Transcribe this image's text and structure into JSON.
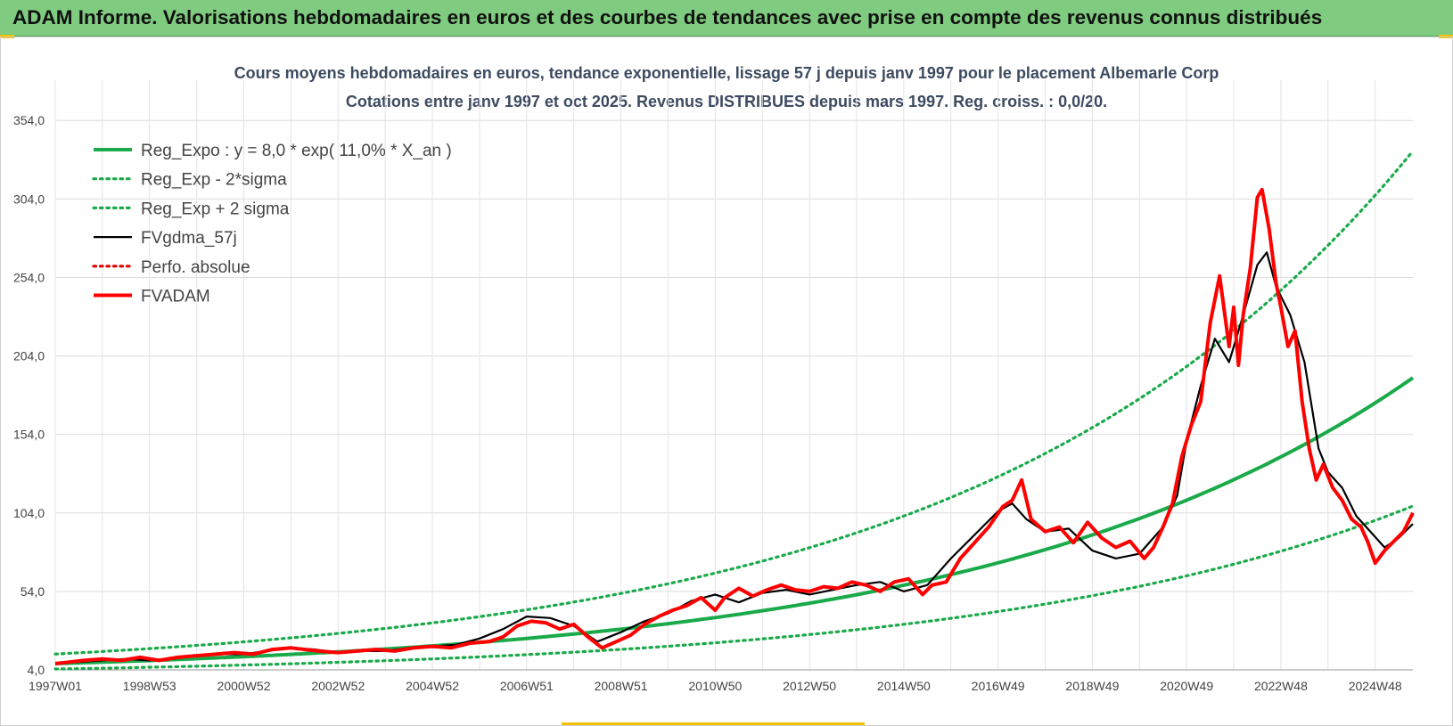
{
  "page": {
    "banner_title": "ADAM Informe. Valorisations hebdomadaires en euros et des courbes de tendances avec prise en compte des revenus connus distribués"
  },
  "chart_data": {
    "type": "line",
    "title": "Cours moyens hebdomadaires en euros, tendance exponentielle, lissage 57 j depuis janv 1997 pour le placement Albemarle Corp",
    "subtitle": "Cotations entre janv 1997 et oct 2025. Revenus DISTRIBUES depuis mars 1997. Reg. croiss. : 0,0/20.",
    "xlabel": "",
    "ylabel": "",
    "x_ticks": [
      "1997W01",
      "1998W53",
      "2000W52",
      "2002W52",
      "2004W52",
      "2006W51",
      "2008W51",
      "2010W50",
      "2012W50",
      "2014W50",
      "2016W49",
      "2018W49",
      "2020W49",
      "2022W48",
      "2024W48"
    ],
    "x_range": [
      1997.0,
      2025.8
    ],
    "y_ticks": [
      "4,0",
      "54,0",
      "104,0",
      "154,0",
      "204,0",
      "254,0",
      "304,0",
      "354,0"
    ],
    "ylim": [
      4,
      374
    ],
    "grid": true,
    "legend_position": "top-left",
    "regression": {
      "coefficient": 8.0,
      "rate_per_year": 0.11
    },
    "series": [
      {
        "name": "Reg_Expo : y = 8,0 * exp( 11,0% *  X_an )",
        "color": "#1aaa4a",
        "style": "solid-thick",
        "kind": "exp",
        "factor": 1.0
      },
      {
        "name": "Reg_Exp - 2*sigma",
        "color": "#1aaa4a",
        "style": "dotted",
        "kind": "exp",
        "factor": 0.57
      },
      {
        "name": "Reg_Exp + 2 sigma",
        "color": "#1aaa4a",
        "style": "dotted",
        "kind": "exp",
        "factor": 1.76
      },
      {
        "name": "FVgdma_57j",
        "color": "#000000",
        "style": "solid",
        "x": [
          1997.0,
          1997.5,
          1998.0,
          1998.5,
          1999.0,
          1999.5,
          2000.0,
          2000.5,
          2001.0,
          2001.5,
          2002.0,
          2002.5,
          2003.0,
          2003.5,
          2004.0,
          2004.5,
          2005.0,
          2005.5,
          2006.0,
          2006.5,
          2007.0,
          2007.5,
          2008.0,
          2008.5,
          2009.0,
          2009.5,
          2010.0,
          2010.5,
          2011.0,
          2011.5,
          2012.0,
          2012.5,
          2013.0,
          2013.5,
          2014.0,
          2014.5,
          2015.0,
          2015.5,
          2016.0,
          2016.5,
          2017.0,
          2017.3,
          2017.6,
          2018.0,
          2018.5,
          2019.0,
          2019.5,
          2020.0,
          2020.5,
          2020.8,
          2021.0,
          2021.3,
          2021.6,
          2021.9,
          2022.2,
          2022.5,
          2022.7,
          2022.9,
          2023.2,
          2023.5,
          2023.8,
          2024.0,
          2024.3,
          2024.6,
          2024.9,
          2025.2,
          2025.5,
          2025.8
        ],
        "values": [
          8,
          9,
          10,
          11,
          10,
          11,
          13,
          14,
          14,
          16,
          18,
          17,
          15,
          16,
          16,
          18,
          19,
          20,
          24,
          30,
          38,
          37,
          32,
          22,
          28,
          35,
          40,
          48,
          52,
          47,
          53,
          55,
          52,
          55,
          58,
          60,
          54,
          58,
          75,
          90,
          105,
          110,
          100,
          92,
          94,
          80,
          75,
          78,
          95,
          115,
          150,
          185,
          215,
          200,
          230,
          262,
          270,
          248,
          230,
          200,
          145,
          130,
          120,
          102,
          92,
          82,
          88,
          97
        ]
      },
      {
        "name": "Perfo. absolue",
        "color": "#e00000",
        "style": "dotted"
      },
      {
        "name": "FVADAM",
        "color": "#ff0000",
        "style": "solid-thick",
        "x": [
          1997.0,
          1997.3,
          1997.6,
          1998.0,
          1998.4,
          1998.8,
          1999.2,
          1999.6,
          2000.0,
          2000.4,
          2000.8,
          2001.2,
          2001.6,
          2002.0,
          2002.3,
          2002.6,
          2003.0,
          2003.4,
          2003.8,
          2004.2,
          2004.6,
          2005.0,
          2005.4,
          2005.8,
          2006.2,
          2006.5,
          2006.8,
          2007.1,
          2007.4,
          2007.7,
          2008.0,
          2008.3,
          2008.6,
          2008.9,
          2009.2,
          2009.5,
          2009.8,
          2010.1,
          2010.4,
          2010.7,
          2011.0,
          2011.2,
          2011.5,
          2011.8,
          2012.1,
          2012.4,
          2012.7,
          2013.0,
          2013.3,
          2013.6,
          2013.9,
          2014.2,
          2014.5,
          2014.8,
          2015.1,
          2015.4,
          2015.6,
          2015.9,
          2016.2,
          2016.5,
          2016.8,
          2017.1,
          2017.3,
          2017.5,
          2017.7,
          2018.0,
          2018.3,
          2018.6,
          2018.9,
          2019.2,
          2019.5,
          2019.8,
          2020.1,
          2020.3,
          2020.5,
          2020.7,
          2020.9,
          2021.1,
          2021.3,
          2021.5,
          2021.7,
          2021.9,
          2022.0,
          2022.1,
          2022.2,
          2022.35,
          2022.5,
          2022.6,
          2022.75,
          2022.9,
          2023.0,
          2023.15,
          2023.3,
          2023.45,
          2023.6,
          2023.75,
          2023.9,
          2024.1,
          2024.3,
          2024.5,
          2024.7,
          2024.85,
          2025.0,
          2025.2,
          2025.4,
          2025.6,
          2025.8
        ],
        "values": [
          8,
          9,
          10,
          11,
          10,
          12,
          10,
          12,
          13,
          14,
          15,
          14,
          17,
          18,
          17,
          16,
          15,
          16,
          17,
          16,
          18,
          19,
          18,
          21,
          22,
          25,
          32,
          35,
          34,
          30,
          33,
          25,
          18,
          22,
          26,
          33,
          38,
          42,
          45,
          50,
          42,
          50,
          56,
          51,
          55,
          58,
          55,
          54,
          57,
          56,
          60,
          58,
          54,
          60,
          62,
          52,
          58,
          60,
          75,
          85,
          95,
          108,
          112,
          125,
          100,
          92,
          95,
          85,
          98,
          88,
          82,
          86,
          75,
          82,
          95,
          110,
          140,
          160,
          175,
          225,
          255,
          210,
          235,
          198,
          230,
          260,
          305,
          310,
          285,
          250,
          235,
          210,
          220,
          175,
          145,
          125,
          135,
          120,
          112,
          100,
          95,
          85,
          72,
          80,
          86,
          92,
          104
        ]
      }
    ]
  }
}
